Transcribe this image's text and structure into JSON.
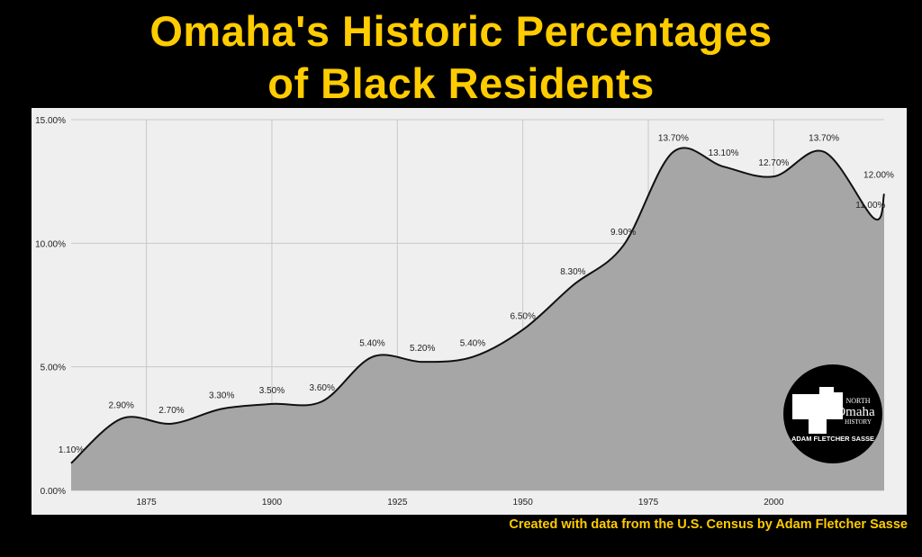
{
  "title_line1": "Omaha's Historic Percentages",
  "title_line2": "of Black Residents",
  "footer": "Created with data from the U.S. Census by Adam Fletcher Sasse",
  "logo_text": "North Omaha History - Adam Fletcher Sasse",
  "chart_data": {
    "type": "area",
    "title": "Omaha's Historic Percentages of Black Residents",
    "x": [
      1860,
      1870,
      1880,
      1890,
      1900,
      1910,
      1920,
      1930,
      1940,
      1950,
      1960,
      1970,
      1980,
      1990,
      2000,
      2010,
      2020,
      2022
    ],
    "values": [
      1.1,
      2.9,
      2.7,
      3.3,
      3.5,
      3.6,
      5.4,
      5.2,
      5.4,
      6.5,
      8.3,
      9.9,
      13.7,
      13.1,
      12.7,
      13.7,
      11.0,
      12.0
    ],
    "data_labels": [
      "1.10%",
      "2.90%",
      "2.70%",
      "3.30%",
      "3.50%",
      "3.60%",
      "5.40%",
      "5.20%",
      "5.40%",
      "6.50%",
      "8.30%",
      "9.90%",
      "13.70%",
      "13.10%",
      "12.70%",
      "13.70%",
      "11.00%",
      "12.00%"
    ],
    "xlim": [
      1860,
      2022
    ],
    "ylim": [
      0,
      15
    ],
    "x_ticks": [
      1875,
      1900,
      1925,
      1950,
      1975,
      2000
    ],
    "x_tick_labels": [
      "1875",
      "1900",
      "1925",
      "1950",
      "1975",
      "2000"
    ],
    "y_ticks": [
      0,
      5,
      10,
      15
    ],
    "y_tick_labels": [
      "0.00%",
      "5.00%",
      "10.00%",
      "15.00%"
    ],
    "grid": true,
    "colors": {
      "fill": "#a6a6a6",
      "line": "#111111",
      "background": "#efefef",
      "title": "#ffcc00"
    }
  }
}
